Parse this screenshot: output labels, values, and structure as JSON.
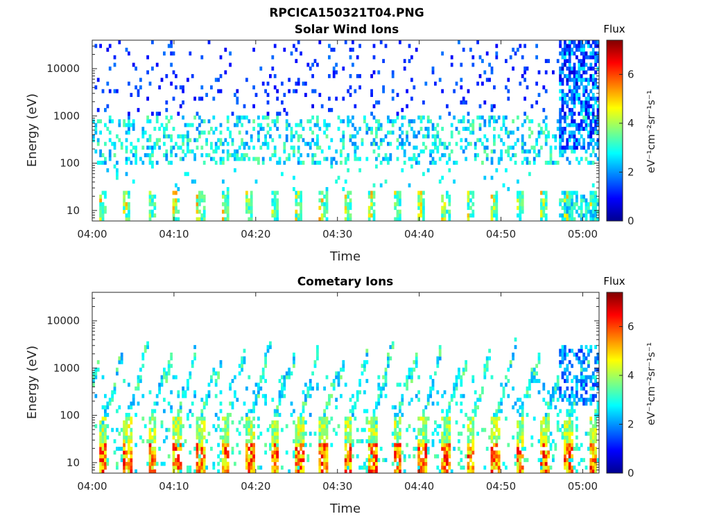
{
  "figure_title": "RPCICA150321T04.PNG",
  "chart_data": [
    {
      "type": "heatmap",
      "title": "Solar Wind Ions",
      "xlabel": "Time",
      "ylabel": "Energy (eV)",
      "x_ticks": [
        "04:00",
        "04:10",
        "04:20",
        "04:30",
        "04:40",
        "04:50",
        "05:00"
      ],
      "x_range_minutes": [
        0,
        62
      ],
      "y_scale": "log",
      "y_ticks": [
        "10",
        "100",
        "1000",
        "10000"
      ],
      "y_range": [
        6,
        40000
      ],
      "colorbar": {
        "label": "eV⁻¹cm⁻²sr⁻¹s⁻¹",
        "title": "Flux",
        "ticks": [
          "0",
          "2",
          "4",
          "6"
        ],
        "range": [
          0,
          7.4
        ],
        "colormap": "jet"
      },
      "grid": false,
      "pulse_period_minutes": 3,
      "features": "Sparse high-energy ions 100-30000 eV; low-energy pulses 6-25 eV every ~3 min; enhanced flux after 04:57"
    },
    {
      "type": "heatmap",
      "title": "Cometary Ions",
      "xlabel": "Time",
      "ylabel": "Energy (eV)",
      "x_ticks": [
        "04:00",
        "04:10",
        "04:20",
        "04:30",
        "04:40",
        "04:50",
        "05:00"
      ],
      "x_range_minutes": [
        0,
        62
      ],
      "y_scale": "log",
      "y_ticks": [
        "10",
        "100",
        "1000",
        "10000"
      ],
      "y_range": [
        6,
        40000
      ],
      "colorbar": {
        "label": "eV⁻¹cm⁻²sr⁻¹s⁻¹",
        "title": "Flux",
        "ticks": [
          "0",
          "2",
          "4",
          "6"
        ],
        "range": [
          0,
          7.4
        ],
        "colormap": "jet"
      },
      "grid": false,
      "pulse_period_minutes": 3,
      "features": "Periodic energy sweeps rising to 1000-6000 eV every ~3 min; intense low-energy (6-100 eV) flux up to ~6.5"
    }
  ]
}
